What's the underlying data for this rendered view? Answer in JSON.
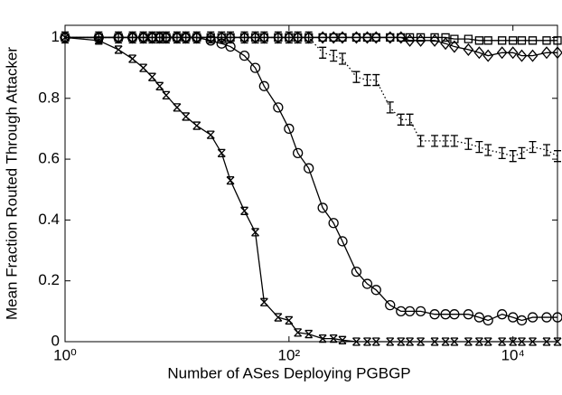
{
  "chart_data": {
    "type": "line",
    "x_label": "Number of ASes Deploying  PGBGP",
    "y_label": "Mean Fraction Routed Through Attacker",
    "x_scale": "log",
    "xlim": [
      1,
      25000
    ],
    "xticks": [
      {
        "value": 1,
        "label": "10⁰"
      },
      {
        "value": 100,
        "label": "10²"
      },
      {
        "value": 10000,
        "label": "10⁴"
      }
    ],
    "ylim": [
      0,
      1.04
    ],
    "yticks": [
      0,
      0.2,
      0.4,
      0.6,
      0.8,
      1
    ],
    "x": [
      1,
      2,
      3,
      4,
      5,
      6,
      7,
      8,
      10,
      12,
      15,
      20,
      25,
      30,
      40,
      50,
      60,
      80,
      100,
      120,
      150,
      200,
      250,
      300,
      400,
      500,
      600,
      800,
      1000,
      1200,
      1500,
      2000,
      2500,
      3000,
      4000,
      5000,
      6000,
      8000,
      10000,
      12000,
      15000,
      20000,
      25000
    ],
    "series": [
      {
        "color": "#000000",
        "marker": "x",
        "line_style": "solid",
        "values": [
          1.0,
          0.99,
          0.96,
          0.93,
          0.9,
          0.87,
          0.84,
          0.81,
          0.77,
          0.74,
          0.71,
          0.68,
          0.62,
          0.53,
          0.43,
          0.36,
          0.13,
          0.08,
          0.07,
          0.03,
          0.025,
          0.01,
          0.01,
          0.005,
          0,
          0,
          0,
          0,
          0,
          0,
          0,
          0,
          0,
          0,
          0,
          0,
          0,
          0,
          0,
          0,
          0,
          0,
          0
        ]
      },
      {
        "color": "#000000",
        "marker": "o",
        "line_style": "solid",
        "values": [
          1.0,
          1.0,
          1.0,
          1.0,
          1.0,
          1.0,
          1.0,
          1.0,
          1.0,
          1.0,
          1.0,
          0.99,
          0.98,
          0.97,
          0.94,
          0.9,
          0.84,
          0.77,
          0.7,
          0.62,
          0.57,
          0.44,
          0.39,
          0.33,
          0.23,
          0.19,
          0.17,
          0.12,
          0.1,
          0.1,
          0.1,
          0.09,
          0.09,
          0.09,
          0.09,
          0.08,
          0.07,
          0.09,
          0.08,
          0.07,
          0.08,
          0.08,
          0.08
        ]
      },
      {
        "color": "#000000",
        "marker": "I",
        "line_style": "dotted",
        "values": [
          1.0,
          1.0,
          1.0,
          1.0,
          1.0,
          1.0,
          1.0,
          1.0,
          1.0,
          1.0,
          1.0,
          1.0,
          1.0,
          1.0,
          1.0,
          1.0,
          1.0,
          1.0,
          1.0,
          1.0,
          1.0,
          0.95,
          0.94,
          0.93,
          0.87,
          0.86,
          0.86,
          0.77,
          0.73,
          0.73,
          0.66,
          0.66,
          0.66,
          0.66,
          0.65,
          0.64,
          0.63,
          0.62,
          0.61,
          0.62,
          0.64,
          0.63,
          0.61
        ]
      },
      {
        "color": "#000000",
        "marker": "diamond",
        "line_style": "solid",
        "values": [
          1.0,
          1.0,
          1.0,
          1.0,
          1.0,
          1.0,
          1.0,
          1.0,
          1.0,
          1.0,
          1.0,
          1.0,
          1.0,
          1.0,
          1.0,
          1.0,
          1.0,
          1.0,
          1.0,
          1.0,
          1.0,
          1.0,
          1.0,
          1.0,
          1.0,
          1.0,
          1.0,
          1.0,
          1.0,
          0.99,
          0.99,
          0.99,
          0.98,
          0.97,
          0.96,
          0.95,
          0.94,
          0.95,
          0.95,
          0.94,
          0.94,
          0.95,
          0.95
        ]
      },
      {
        "color": "#000000",
        "marker": "square",
        "line_style": "solid",
        "values": [
          1.0,
          1.0,
          1.0,
          1.0,
          1.0,
          1.0,
          1.0,
          1.0,
          1.0,
          1.0,
          1.0,
          1.0,
          1.0,
          1.0,
          1.0,
          1.0,
          1.0,
          1.0,
          1.0,
          1.0,
          1.0,
          1.0,
          1.0,
          1.0,
          1.0,
          1.0,
          1.0,
          1.0,
          1.0,
          1.0,
          1.0,
          1.0,
          1.0,
          0.995,
          0.995,
          0.99,
          0.99,
          0.99,
          0.99,
          0.99,
          0.99,
          0.99,
          0.99
        ]
      }
    ]
  }
}
